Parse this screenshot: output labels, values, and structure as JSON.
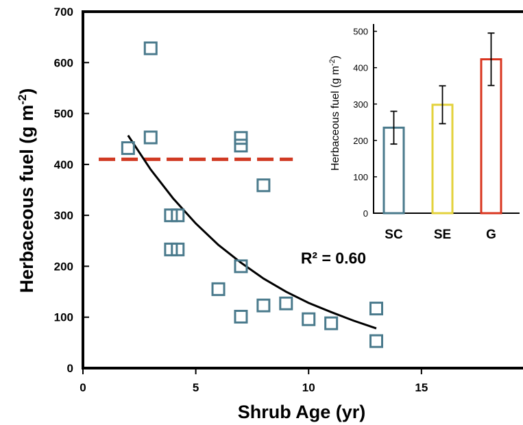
{
  "chart_data": [
    {
      "type": "scatter",
      "xlabel": "Shrub Age (yr)",
      "ylabel_main": "Herbaceous fuel (g m",
      "ylabel_sup": "-2",
      "ylabel_close": ")",
      "xlim": [
        0,
        19.5
      ],
      "ylim": [
        0,
        700
      ],
      "xticks": [
        0,
        5,
        10,
        15
      ],
      "yticks": [
        0,
        100,
        200,
        300,
        400,
        500,
        600,
        700
      ],
      "grid": false,
      "series": [
        {
          "marker": "open-square",
          "color": "#4a7a8c",
          "x": [
            2,
            3,
            3,
            3.9,
            4.2,
            3.9,
            4.2,
            6,
            7,
            7,
            7,
            7,
            8,
            8,
            9,
            10,
            11,
            13,
            13
          ],
          "y": [
            432,
            628,
            453,
            300,
            300,
            233,
            233,
            155,
            452,
            437,
            200,
            101,
            359,
            123,
            127,
            96,
            88,
            117,
            53
          ]
        }
      ],
      "reference_line": {
        "style": "dashed",
        "color": "#d03a23",
        "y": 410,
        "x_from": 0.7,
        "x_to": 9.3
      },
      "fit_curve": {
        "style": "solid",
        "color": "#000000",
        "x": [
          2,
          3,
          4,
          5,
          6,
          7,
          8,
          9,
          10,
          11,
          12,
          13
        ],
        "y": [
          457,
          390,
          333,
          284,
          242,
          207,
          176,
          150,
          128,
          110,
          93,
          78
        ]
      },
      "annotations": [
        {
          "text": "R² = 0.60",
          "x": 11.1,
          "y": 205
        }
      ]
    },
    {
      "type": "bar",
      "categories": [
        "SC",
        "SE",
        "G"
      ],
      "values": [
        235,
        298,
        423
      ],
      "errors": [
        45,
        52,
        72
      ],
      "colors": [
        "#4a7a8c",
        "#e3d23c",
        "#d9351f"
      ],
      "ylabel_main": "Herbaceous fuel (g m",
      "ylabel_sup": "-2",
      "ylabel_close": ")",
      "ylim": [
        0,
        520
      ],
      "yticks": [
        0,
        100,
        200,
        300,
        400,
        500
      ],
      "grid": false
    }
  ]
}
